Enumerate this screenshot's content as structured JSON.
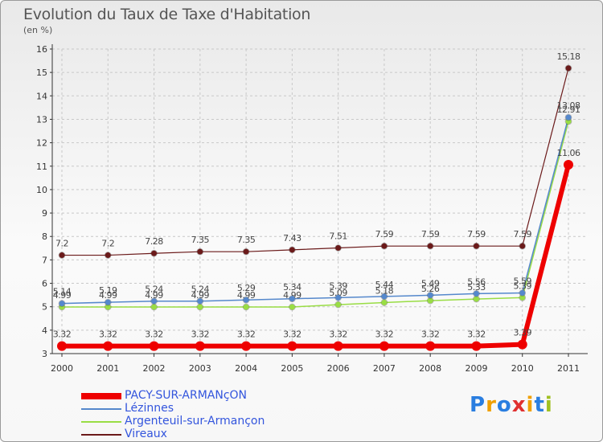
{
  "chart_data": {
    "type": "line",
    "title": "Evolution du Taux de Taxe d'Habitation",
    "subtitle": "(en %)",
    "x": [
      "2000",
      "2001",
      "2002",
      "2003",
      "2004",
      "2005",
      "2006",
      "2007",
      "2008",
      "2009",
      "2010",
      "2011"
    ],
    "ylim": [
      3,
      16
    ],
    "yticks": [
      "3",
      "4",
      "5",
      "6",
      "7",
      "8",
      "9",
      "10",
      "11",
      "12",
      "13",
      "14",
      "15",
      "16"
    ],
    "series": [
      {
        "name": "PACY-SUR-ARMANçON",
        "color": "#ee0000",
        "values": [
          3.32,
          3.32,
          3.32,
          3.32,
          3.32,
          3.32,
          3.32,
          3.32,
          3.32,
          3.32,
          3.39,
          11.06
        ],
        "labels": [
          "3.32",
          "3.32",
          "3.32",
          "3.32",
          "3.32",
          "3.32",
          "3.32",
          "3.32",
          "3.32",
          "3.32",
          "3.39",
          "11.06"
        ]
      },
      {
        "name": "Lézinnes",
        "color": "#5588cc",
        "values": [
          5.14,
          5.19,
          5.24,
          5.24,
          5.29,
          5.34,
          5.39,
          5.44,
          5.49,
          5.56,
          5.59,
          13.08
        ],
        "labels": [
          "5.14",
          "5.19",
          "5.24",
          "5.24",
          "5.29",
          "5.34",
          "5.39",
          "5.44",
          "5.49",
          "5.56",
          "5.59",
          "13.08"
        ]
      },
      {
        "name": "Argenteuil-sur-Armançon",
        "color": "#99dd44",
        "values": [
          4.99,
          4.99,
          4.99,
          4.99,
          4.99,
          4.99,
          5.09,
          5.18,
          5.26,
          5.33,
          5.39,
          12.91
        ],
        "labels": [
          "4.99",
          "4.99",
          "4.99",
          "4.99",
          "4.99",
          "4.99",
          "5.09",
          "5.18",
          "5.26",
          "5.33",
          "5.39",
          "12.91"
        ]
      },
      {
        "name": "Vireaux",
        "color": "#6b1a1a",
        "values": [
          7.2,
          7.2,
          7.28,
          7.35,
          7.35,
          7.43,
          7.51,
          7.59,
          7.59,
          7.59,
          7.59,
          15.18
        ],
        "labels": [
          "7.2",
          "7.2",
          "7.28",
          "7.35",
          "7.35",
          "7.43",
          "7.51",
          "7.59",
          "7.59",
          "7.59",
          "7.59",
          "15.18"
        ]
      }
    ]
  },
  "logo": {
    "letters": [
      "P",
      "r",
      "o",
      "x",
      "i",
      "t",
      "i"
    ],
    "colors": [
      "#2a7ee0",
      "#f0a000",
      "#2a7ee0",
      "#e03030",
      "#f0a000",
      "#2a7ee0",
      "#a0c020"
    ]
  }
}
